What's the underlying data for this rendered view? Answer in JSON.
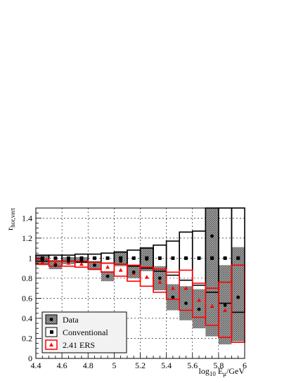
{
  "chart_data": {
    "type": "scatter",
    "title": "",
    "xlabel": "log_{10} E_{μ}/GeV",
    "ylabel": "r_{hor,vert}",
    "xlabel_parts": {
      "pre": "log",
      "sub1": "10",
      "mid": " E",
      "sub2": "μ",
      "post": "/GeV"
    },
    "ylabel_parts": {
      "main": "r",
      "sub": "hor,vert"
    },
    "xlim": [
      4.4,
      6.0
    ],
    "ylim": [
      0,
      1.5
    ],
    "grid": true,
    "legend_position": "bottom-left",
    "x_ticks": [
      4.4,
      4.6,
      4.8,
      5.0,
      5.2,
      5.4,
      5.6,
      5.8,
      6.0
    ],
    "x_tick_labels": [
      "4.4",
      "4.6",
      "4.8",
      "5",
      "5.2",
      "5.4",
      "5.6",
      "5.8",
      "6"
    ],
    "y_ticks": [
      0,
      0.2,
      0.4,
      0.6,
      0.8,
      1.0,
      1.2,
      1.4
    ],
    "y_tick_labels": [
      "0",
      "0.2",
      "0.4",
      "0.6",
      "0.8",
      "1",
      "1.2",
      "1.4"
    ],
    "bin_edges": [
      4.4,
      4.5,
      4.6,
      4.7,
      4.8,
      4.9,
      5.0,
      5.1,
      5.2,
      5.3,
      5.4,
      5.5,
      5.6,
      5.7,
      5.8,
      5.9,
      6.0
    ],
    "series": [
      {
        "name": "Data",
        "marker": "circle",
        "color": "#000000",
        "band_fill": "#8c8c8c",
        "values": [
          0.98,
          0.93,
          0.97,
          0.98,
          0.93,
          0.82,
          0.97,
          0.86,
          0.99,
          0.8,
          0.61,
          0.55,
          0.49,
          1.22,
          0.53,
          0.61
        ],
        "band_low": [
          0.93,
          0.89,
          0.94,
          0.95,
          0.88,
          0.77,
          0.92,
          0.8,
          0.87,
          0.68,
          0.48,
          0.38,
          0.3,
          0.22,
          0.14,
          0.17
        ],
        "band_high": [
          1.03,
          0.98,
          1.01,
          1.01,
          0.97,
          0.87,
          1.07,
          0.93,
          1.11,
          0.92,
          0.74,
          0.72,
          0.69,
          1.5,
          0.93,
          1.11
        ]
      },
      {
        "name": "Conventional",
        "marker": "square",
        "color": "#000000",
        "values": [
          1.0,
          1.0,
          1.0,
          1.0,
          1.0,
          1.0,
          1.0,
          1.0,
          1.0,
          1.0,
          1.0,
          1.0,
          1.0,
          1.0,
          1.0,
          1.0
        ],
        "band_low": [
          0.97,
          0.97,
          0.97,
          0.96,
          0.96,
          0.95,
          0.94,
          0.92,
          0.9,
          0.87,
          0.83,
          0.78,
          0.73,
          0.66,
          0.55,
          0.46
        ],
        "band_high": [
          1.03,
          1.03,
          1.03,
          1.04,
          1.04,
          1.05,
          1.06,
          1.08,
          1.1,
          1.13,
          1.17,
          1.26,
          1.27,
          1.5,
          1.5,
          1.5
        ]
      },
      {
        "name": "2.41 ERS",
        "marker": "triangle",
        "color": "#ff0000",
        "values": [
          0.96,
          0.95,
          0.95,
          0.94,
          0.93,
          0.91,
          0.88,
          0.85,
          0.81,
          0.76,
          0.7,
          0.7,
          0.58,
          0.52,
          0.48,
          0.61
        ],
        "band_low": [
          0.94,
          0.92,
          0.92,
          0.91,
          0.89,
          0.86,
          0.82,
          0.77,
          0.72,
          0.66,
          0.59,
          0.48,
          0.41,
          0.33,
          0.21,
          0.16
        ],
        "band_high": [
          0.99,
          0.97,
          0.97,
          0.97,
          0.96,
          0.95,
          0.94,
          0.93,
          0.91,
          0.89,
          0.86,
          0.88,
          0.75,
          0.7,
          0.76,
          0.93
        ]
      }
    ]
  }
}
